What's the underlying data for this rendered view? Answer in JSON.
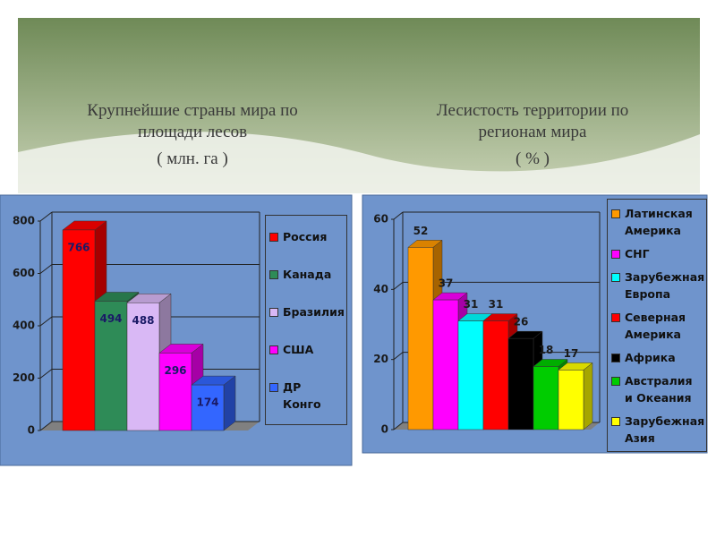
{
  "chart_data": [
    {
      "type": "bar3d",
      "title": "Крупнейшие страны мира по площади лесов",
      "subtitle": "( млн. га )",
      "categories": [
        "Россия",
        "Канада",
        "Бразилия",
        "США",
        "ДР Конго"
      ],
      "values": [
        766,
        494,
        488,
        296,
        174
      ],
      "colors": [
        "#ff0000",
        "#2e8b57",
        "#d9b8f5",
        "#ff00ff",
        "#3366ff"
      ],
      "ylim": [
        0,
        800
      ],
      "yticks": [
        0,
        200,
        400,
        600,
        800
      ],
      "grid": true,
      "legend": "right"
    },
    {
      "type": "bar3d",
      "title": "Лесистость территории по регионам мира",
      "subtitle": "( % )",
      "categories": [
        "Латинская Америка",
        "СНГ",
        "Зарубежная Европа",
        "Северная Америка",
        "Африка",
        "Австралия и Океания",
        "Зарубежная Азия"
      ],
      "values": [
        52,
        37,
        31,
        31,
        26,
        18,
        17
      ],
      "colors": [
        "#ff9900",
        "#ff00ff",
        "#00ffff",
        "#ff0000",
        "#000000",
        "#00cc00",
        "#ffff00"
      ],
      "ylim": [
        0,
        60
      ],
      "yticks": [
        0,
        20,
        40,
        60
      ],
      "grid": true,
      "legend": "right"
    }
  ]
}
